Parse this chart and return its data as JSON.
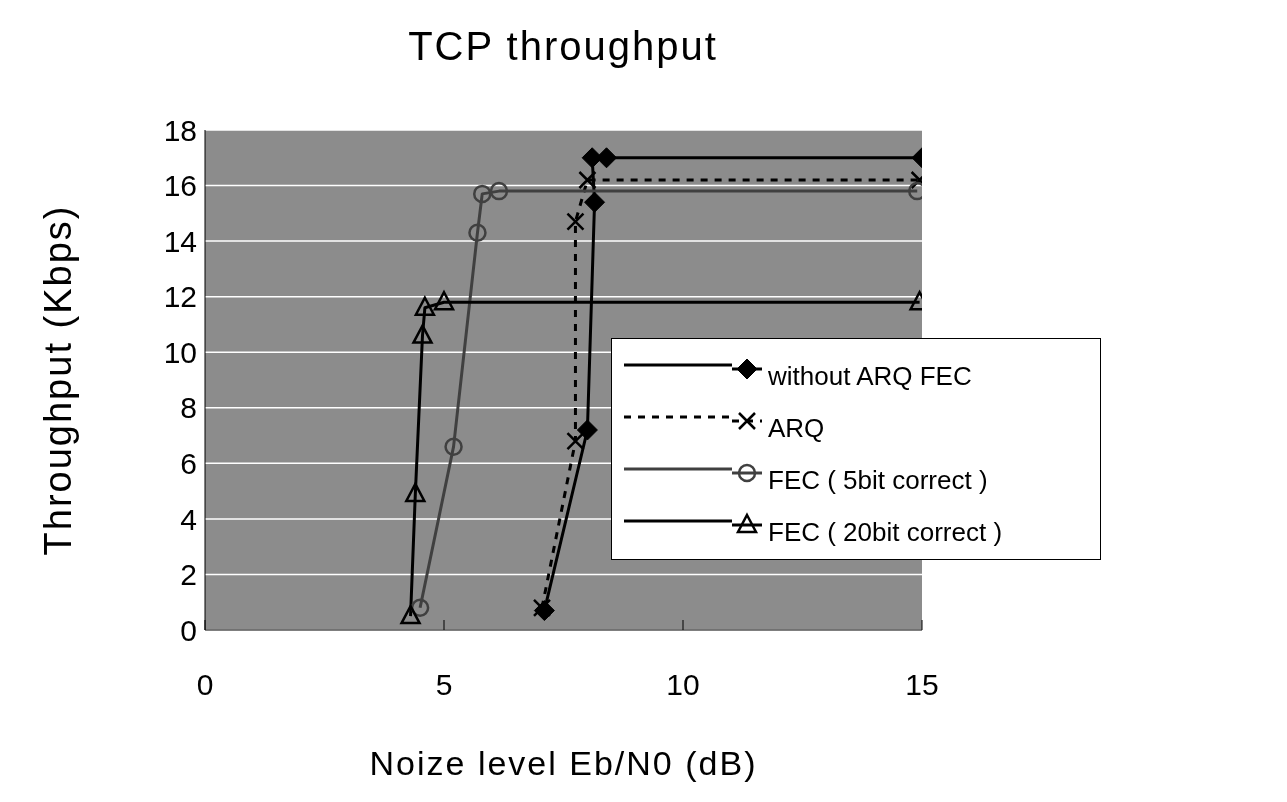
{
  "chart_data": {
    "type": "line",
    "title": "TCP throughput",
    "xlabel": "Noize level Eb/N0 (dB)",
    "ylabel": "Throughput (Kbps)",
    "xlim": [
      0,
      15
    ],
    "xticks": [
      0,
      5,
      10,
      15
    ],
    "ylim": [
      0,
      18
    ],
    "yticks": [
      0,
      2,
      4,
      6,
      8,
      10,
      12,
      14,
      16,
      18
    ],
    "grid": "y",
    "legend": "right",
    "series": [
      {
        "name": "without ARQ FEC",
        "color": "#000000",
        "marker": "diamond",
        "line_style": "solid",
        "x": [
          7.1,
          8.0,
          8.15,
          8.1,
          8.4,
          15.0
        ],
        "values": [
          0.7,
          7.2,
          15.4,
          17.0,
          17.0,
          17.0
        ]
      },
      {
        "name": "ARQ",
        "color": "#000000",
        "marker": "cross",
        "line_style": "dashed",
        "x": [
          7.05,
          7.75,
          7.75,
          8.0,
          14.95
        ],
        "values": [
          0.8,
          6.8,
          14.7,
          16.2,
          16.2
        ]
      },
      {
        "name": "FEC ( 5bit correct )",
        "color": "#404040",
        "marker": "circle",
        "line_style": "solid",
        "x": [
          4.5,
          5.2,
          5.7,
          5.8,
          6.15,
          14.9
        ],
        "values": [
          0.8,
          6.6,
          14.3,
          15.7,
          15.8,
          15.8
        ]
      },
      {
        "name": "FEC ( 20bit correct )",
        "color": "#000000",
        "marker": "triangle",
        "line_style": "solid",
        "x": [
          4.3,
          4.4,
          4.55,
          4.6,
          5.0,
          14.95
        ],
        "values": [
          0.5,
          4.9,
          10.6,
          11.6,
          11.8,
          11.8
        ]
      }
    ]
  }
}
